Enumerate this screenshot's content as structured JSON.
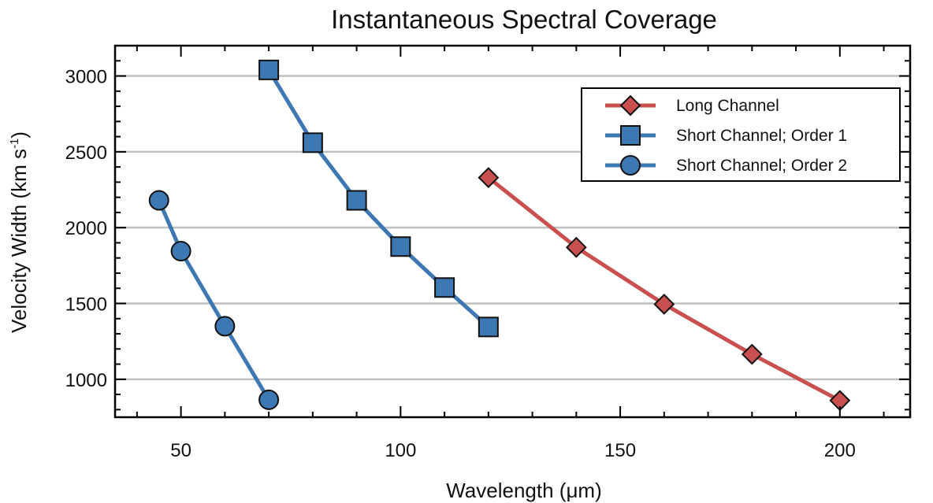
{
  "chart_data": {
    "type": "line",
    "title": "Instantaneous Spectral Coverage",
    "xlabel": "Wavelength (μm)",
    "ylabel": "Velocity Width (km s",
    "ylabel_sup": "-1",
    "ylabel_close": ")",
    "xlim": [
      35,
      216
    ],
    "ylim": [
      750,
      3200
    ],
    "x_ticks": [
      50,
      100,
      150,
      200
    ],
    "y_ticks": [
      1000,
      1500,
      2000,
      2500,
      3000
    ],
    "x_tick_labels": [
      "50",
      "100",
      "150",
      "200"
    ],
    "y_tick_labels": [
      "1000",
      "1500",
      "2000",
      "2500",
      "3000"
    ],
    "grid": "horizontal",
    "legend_position": "top-right",
    "series": [
      {
        "name": "Long Channel",
        "color": "#c9504f",
        "marker": "diamond",
        "x": [
          120,
          140,
          160,
          180,
          200
        ],
        "y": [
          2330,
          1870,
          1495,
          1165,
          860
        ]
      },
      {
        "name": "Short Channel; Order 1",
        "color": "#3e78b2",
        "marker": "square",
        "x": [
          70,
          80,
          90,
          100,
          110,
          120
        ],
        "y": [
          3040,
          2560,
          2180,
          1875,
          1605,
          1345
        ]
      },
      {
        "name": "Short Channel; Order 2",
        "color": "#3e78b2",
        "marker": "circle",
        "x": [
          45,
          50,
          60,
          70
        ],
        "y": [
          2180,
          1845,
          1350,
          865
        ]
      }
    ]
  }
}
